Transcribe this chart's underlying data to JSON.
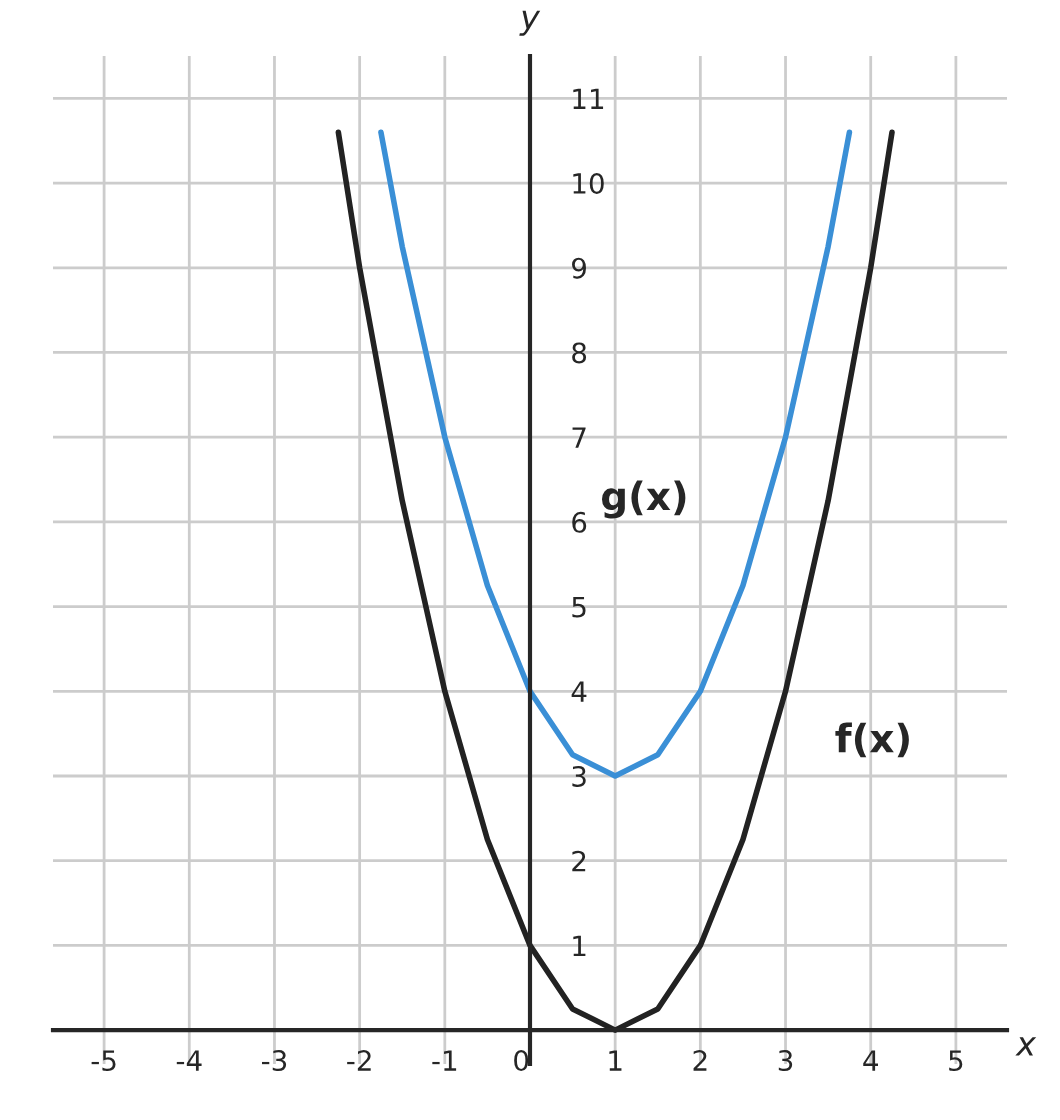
{
  "chart_data": {
    "type": "line",
    "xlabel": "x",
    "ylabel": "y",
    "xlim": [
      -5.6,
      5.6
    ],
    "ylim": [
      -0.4,
      11.5
    ],
    "xticks": [
      -5,
      -4,
      -3,
      -2,
      -1,
      0,
      1,
      2,
      3,
      4,
      5
    ],
    "yticks": [
      1,
      2,
      3,
      4,
      5,
      6,
      7,
      8,
      9,
      10,
      11
    ],
    "grid": true,
    "marker": "none",
    "line_style": "solid",
    "series": [
      {
        "color": "#222222",
        "x": [
          -2.25,
          -2,
          -1.5,
          -1,
          -0.5,
          0,
          0.5,
          1,
          1.5,
          2,
          2.5,
          3,
          3.5,
          4,
          4.25
        ],
        "values": [
          10.6,
          9,
          6.25,
          4,
          2.25,
          1,
          0.25,
          0,
          0.25,
          1,
          2.25,
          4,
          6.25,
          9,
          10.6
        ]
      },
      {
        "color": "#3a8fd6",
        "x": [
          -1.75,
          -1.5,
          -1,
          -0.5,
          0,
          0.5,
          1,
          1.5,
          2,
          2.5,
          3,
          3.5,
          3.75
        ],
        "values": [
          10.6,
          9.25,
          7,
          5.25,
          4,
          3.25,
          3,
          3.25,
          4,
          5.25,
          7,
          9.25,
          10.6
        ]
      }
    ],
    "annotations": [
      "g(x)",
      "f(x)"
    ]
  }
}
